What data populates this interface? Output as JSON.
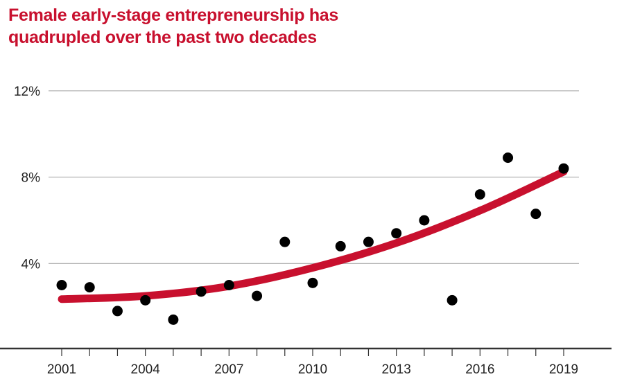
{
  "chart_data": {
    "type": "scatter",
    "title_lines": [
      "Female early-stage entrepreneurship has",
      "quadrupled over the past two decades"
    ],
    "xlabel": "",
    "ylabel": "",
    "x_ticks": [
      "2001",
      "2004",
      "2007",
      "2010",
      "2013",
      "2016",
      "2019"
    ],
    "y_ticks": [
      {
        "value": 4,
        "label": "4%"
      },
      {
        "value": 8,
        "label": "8%"
      },
      {
        "value": 12,
        "label": "12%"
      }
    ],
    "xlim": [
      2001,
      2019
    ],
    "ylim": [
      0,
      12
    ],
    "grid": true,
    "series": [
      {
        "name": "Observed",
        "kind": "points",
        "x": [
          2001,
          2002,
          2003,
          2004,
          2005,
          2006,
          2007,
          2008,
          2009,
          2010,
          2011,
          2012,
          2013,
          2014,
          2015,
          2016,
          2017,
          2018,
          2019
        ],
        "values": [
          3.0,
          2.9,
          1.8,
          2.3,
          1.4,
          2.7,
          3.0,
          2.5,
          5.0,
          3.1,
          4.8,
          5.0,
          5.4,
          6.0,
          2.3,
          7.2,
          8.9,
          6.3,
          8.4
        ]
      },
      {
        "name": "Trend",
        "kind": "line",
        "x": [
          2001,
          2004,
          2007,
          2010,
          2013,
          2016,
          2019
        ],
        "values": [
          2.35,
          2.5,
          2.95,
          3.8,
          4.95,
          6.45,
          8.25
        ]
      }
    ],
    "colors": {
      "title": "#c8102e",
      "trend": "#c8102e",
      "points": "#000000",
      "grid": "#aaaaaa",
      "axis": "#333333"
    }
  }
}
